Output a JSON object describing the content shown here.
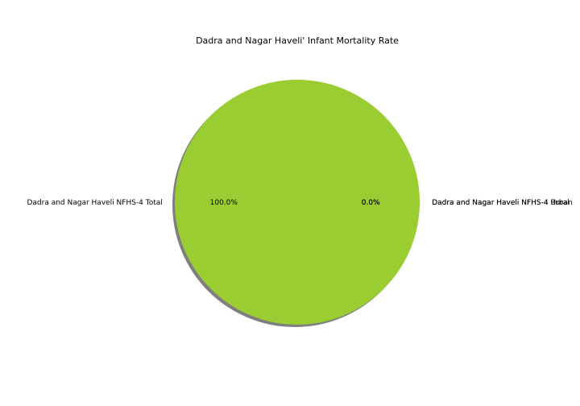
{
  "chart_data": {
    "type": "pie",
    "title": "Dadra and Nagar Haveli' Infant Mortality Rate",
    "slices": [
      {
        "label": "Dadra and Nagar Haveli NFHS-4 Total",
        "value": 100.0,
        "pct_label": "100.0%",
        "color": "#9acd32"
      },
      {
        "label": "Dadra and Nagar Haveli NFHS-4 Urban",
        "value": 0.0,
        "pct_label": "0.0%",
        "color": "#ff7f0e"
      },
      {
        "label": "Dadra and Nagar Haveli NFHS-4 Rural",
        "value": 0.0,
        "pct_label": "0.0%",
        "color": "#2ca02c"
      }
    ],
    "shadow": true,
    "legend": "none"
  }
}
